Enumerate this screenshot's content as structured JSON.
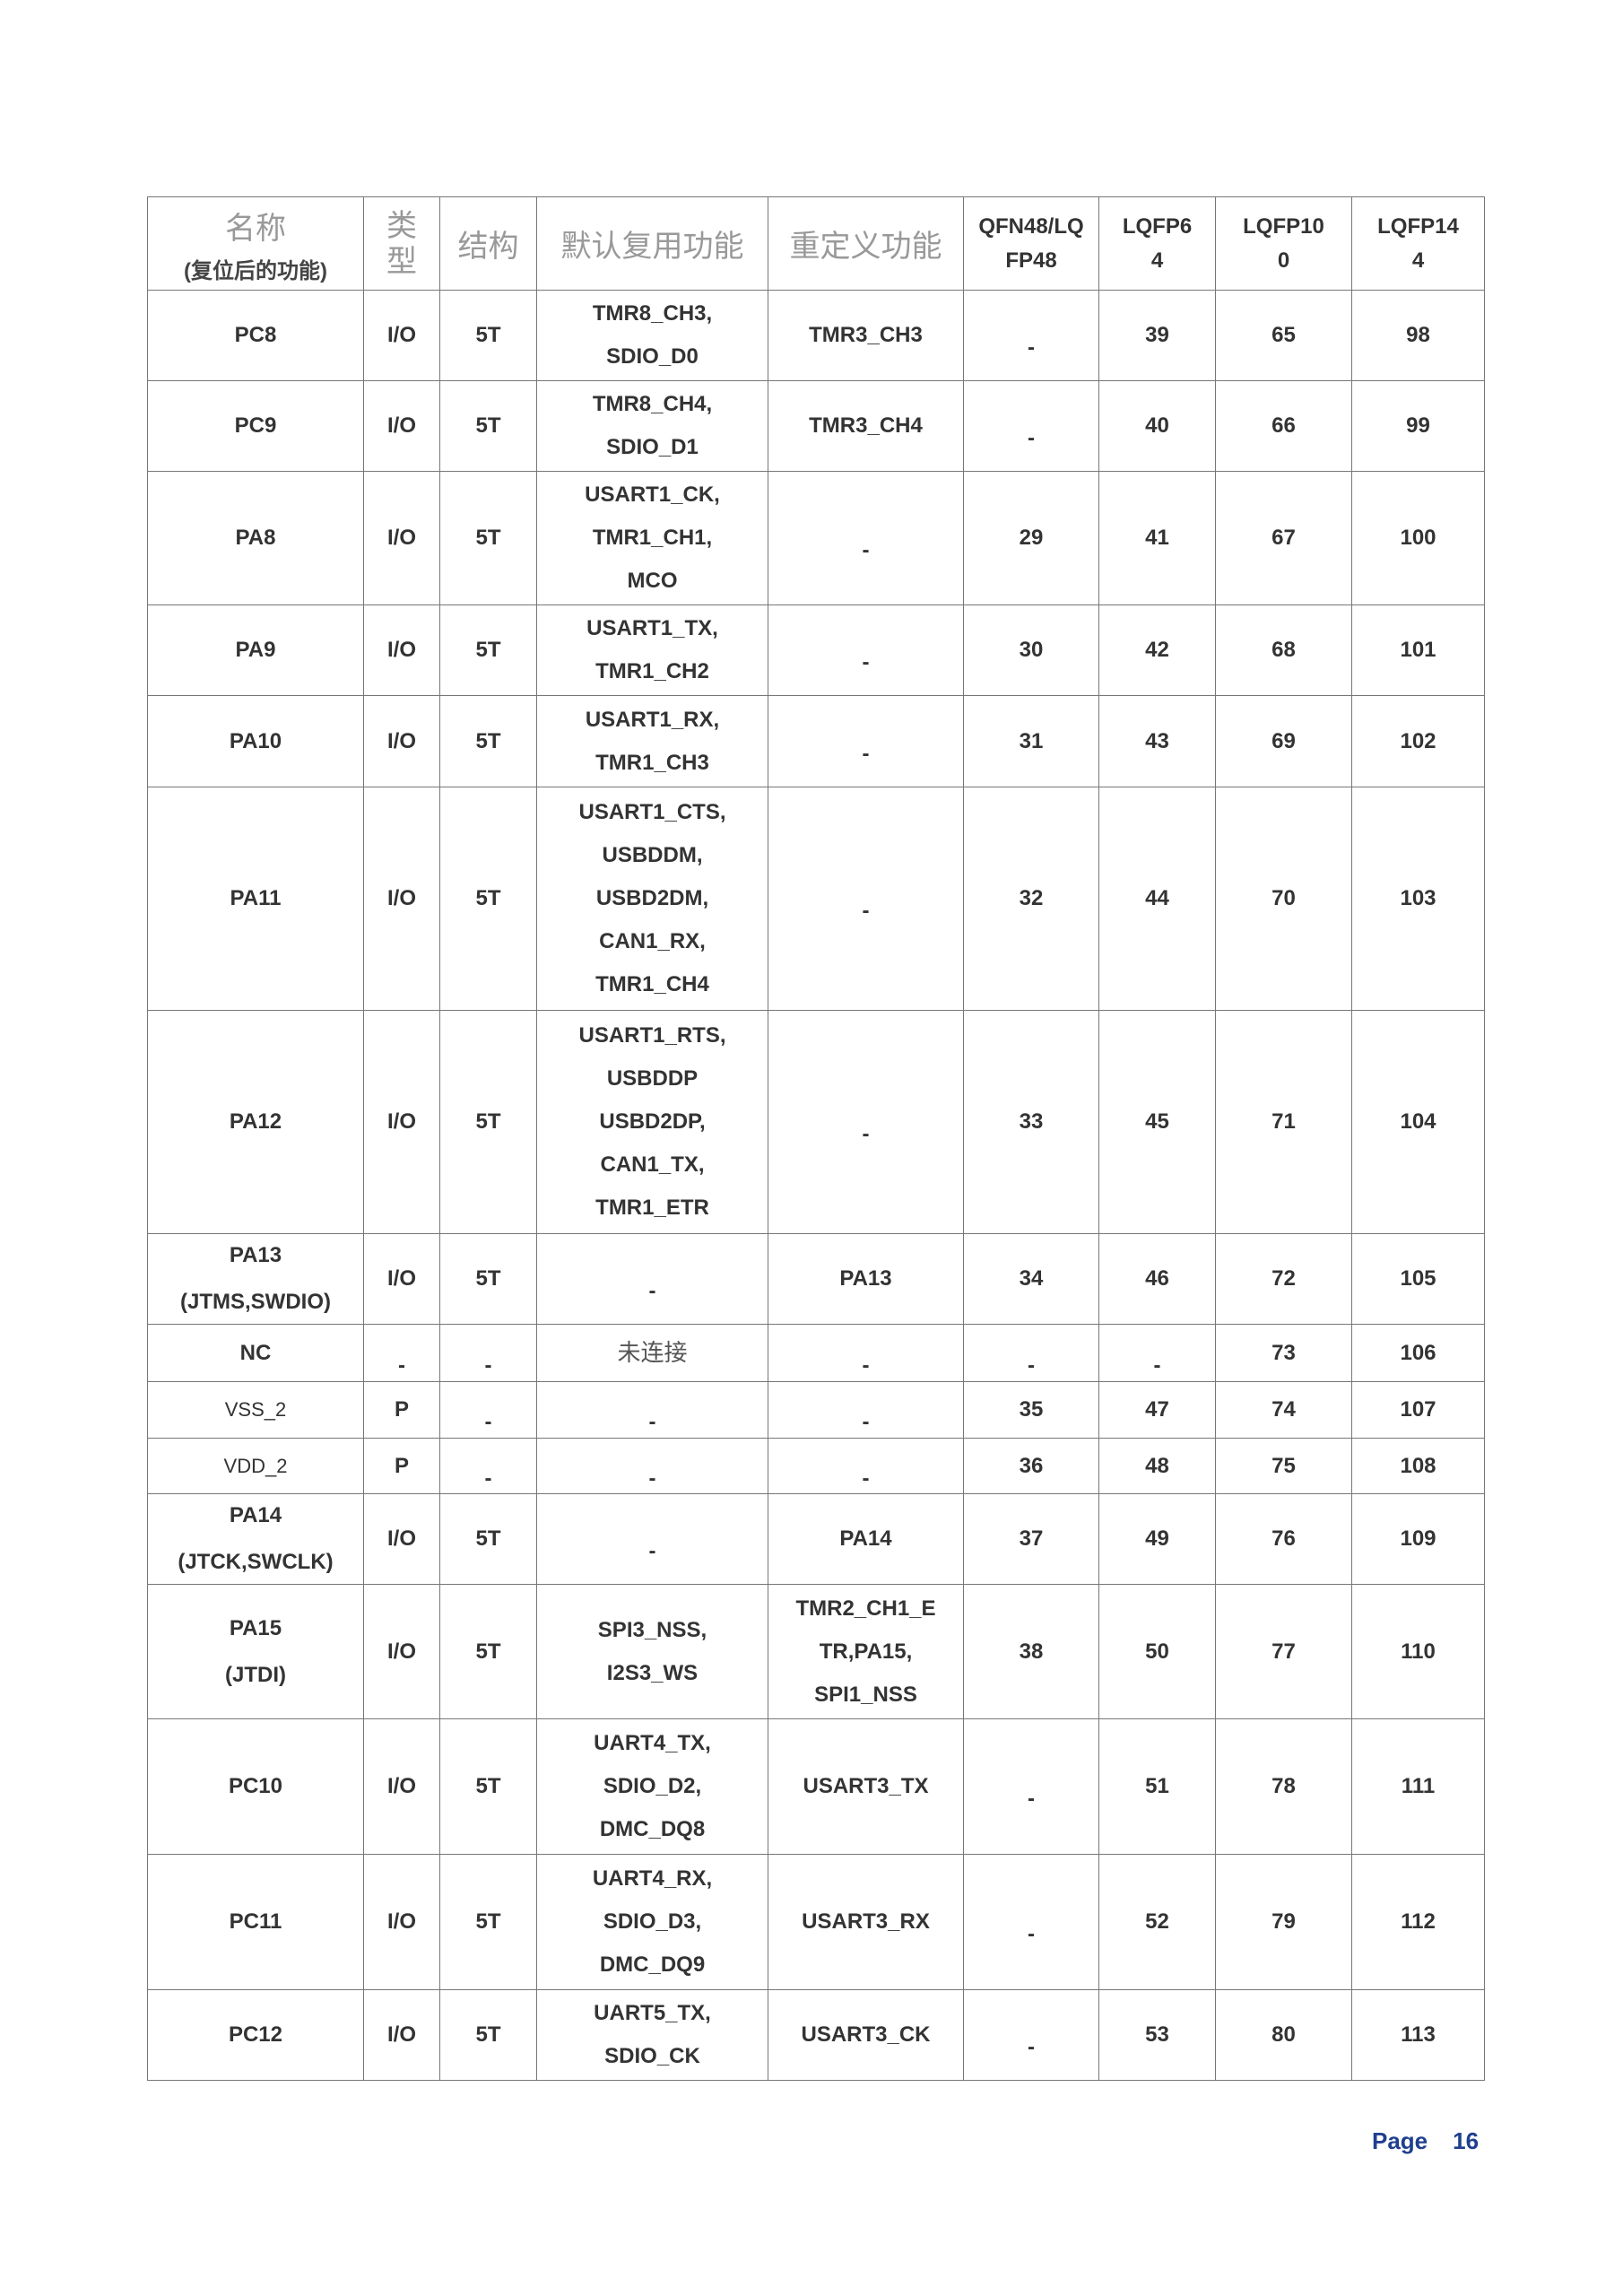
{
  "header": {
    "name": "名称",
    "name_sub": "(复位后的功能)",
    "type": "类型",
    "structure": "结构",
    "default_af": "默认复用功能",
    "remap": "重定义功能",
    "qfn48": "QFN48/LQFP48",
    "lqfp64": "LQFP64",
    "lqfp100": "LQFP100",
    "lqfp144": "LQFP144"
  },
  "rows": [
    {
      "name": "PC8",
      "name_sub": "",
      "type": "I/O",
      "structure": "5T",
      "default_af": [
        "TMR8_CH3,",
        "SDIO_D0"
      ],
      "remap": [
        "TMR3_CH3"
      ],
      "qfn48": "-",
      "lqfp64": "39",
      "lqfp100": "65",
      "lqfp144": "98"
    },
    {
      "name": "PC9",
      "name_sub": "",
      "type": "I/O",
      "structure": "5T",
      "default_af": [
        "TMR8_CH4,",
        "SDIO_D1"
      ],
      "remap": [
        "TMR3_CH4"
      ],
      "qfn48": "-",
      "lqfp64": "40",
      "lqfp100": "66",
      "lqfp144": "99"
    },
    {
      "name": "PA8",
      "name_sub": "",
      "type": "I/O",
      "structure": "5T",
      "default_af": [
        "USART1_CK,",
        "TMR1_CH1,",
        "MCO"
      ],
      "remap": [
        "-"
      ],
      "qfn48": "29",
      "lqfp64": "41",
      "lqfp100": "67",
      "lqfp144": "100"
    },
    {
      "name": "PA9",
      "name_sub": "",
      "type": "I/O",
      "structure": "5T",
      "default_af": [
        "USART1_TX,",
        "TMR1_CH2"
      ],
      "remap": [
        "-"
      ],
      "qfn48": "30",
      "lqfp64": "42",
      "lqfp100": "68",
      "lqfp144": "101"
    },
    {
      "name": "PA10",
      "name_sub": "",
      "type": "I/O",
      "structure": "5T",
      "default_af": [
        "USART1_RX,",
        "TMR1_CH3"
      ],
      "remap": [
        "-"
      ],
      "qfn48": "31",
      "lqfp64": "43",
      "lqfp100": "69",
      "lqfp144": "102"
    },
    {
      "name": "PA11",
      "name_sub": "",
      "type": "I/O",
      "structure": "5T",
      "default_af": [
        "USART1_CTS,",
        "USBDDM,",
        "USBD2DM,",
        "CAN1_RX,",
        "TMR1_CH4"
      ],
      "remap": [
        "-"
      ],
      "qfn48": "32",
      "lqfp64": "44",
      "lqfp100": "70",
      "lqfp144": "103"
    },
    {
      "name": "PA12",
      "name_sub": "",
      "type": "I/O",
      "structure": "5T",
      "default_af": [
        "USART1_RTS,",
        "USBDDP",
        "USBD2DP,",
        "CAN1_TX,",
        "TMR1_ETR"
      ],
      "remap": [
        "-"
      ],
      "qfn48": "33",
      "lqfp64": "45",
      "lqfp100": "71",
      "lqfp144": "104"
    },
    {
      "name": "PA13",
      "name_sub": "(JTMS,SWDIO)",
      "type": "I/O",
      "structure": "5T",
      "default_af": [
        "-"
      ],
      "remap": [
        "PA13"
      ],
      "qfn48": "34",
      "lqfp64": "46",
      "lqfp100": "72",
      "lqfp144": "105"
    },
    {
      "name": "NC",
      "name_sub": "",
      "type": "-",
      "structure": "-",
      "default_af": [
        "未连接"
      ],
      "remap": [
        "-"
      ],
      "qfn48": "-",
      "lqfp64": "-",
      "lqfp100": "73",
      "lqfp144": "106"
    },
    {
      "name": "VSS_2",
      "name_sub": "",
      "type": "P",
      "structure": "-",
      "default_af": [
        "-"
      ],
      "remap": [
        "-"
      ],
      "qfn48": "35",
      "lqfp64": "47",
      "lqfp100": "74",
      "lqfp144": "107"
    },
    {
      "name": "VDD_2",
      "name_sub": "",
      "type": "P",
      "structure": "-",
      "default_af": [
        "-"
      ],
      "remap": [
        "-"
      ],
      "qfn48": "36",
      "lqfp64": "48",
      "lqfp100": "75",
      "lqfp144": "108"
    },
    {
      "name": "PA14",
      "name_sub": "(JTCK,SWCLK)",
      "type": "I/O",
      "structure": "5T",
      "default_af": [
        "-"
      ],
      "remap": [
        "PA14"
      ],
      "qfn48": "37",
      "lqfp64": "49",
      "lqfp100": "76",
      "lqfp144": "109"
    },
    {
      "name": "PA15",
      "name_sub": "(JTDI)",
      "type": "I/O",
      "structure": "5T",
      "default_af": [
        "SPI3_NSS,",
        "I2S3_WS"
      ],
      "remap": [
        "TMR2_CH1_E",
        "TR,PA15,",
        "SPI1_NSS"
      ],
      "qfn48": "38",
      "lqfp64": "50",
      "lqfp100": "77",
      "lqfp144": "110"
    },
    {
      "name": "PC10",
      "name_sub": "",
      "type": "I/O",
      "structure": "5T",
      "default_af": [
        "UART4_TX,",
        "SDIO_D2,",
        "DMC_DQ8"
      ],
      "remap": [
        "USART3_TX"
      ],
      "qfn48": "-",
      "lqfp64": "51",
      "lqfp100": "78",
      "lqfp144": "111"
    },
    {
      "name": "PC11",
      "name_sub": "",
      "type": "I/O",
      "structure": "5T",
      "default_af": [
        "UART4_RX,",
        "SDIO_D3,",
        "DMC_DQ9"
      ],
      "remap": [
        "USART3_RX"
      ],
      "qfn48": "-",
      "lqfp64": "52",
      "lqfp100": "79",
      "lqfp144": "112"
    },
    {
      "name": "PC12",
      "name_sub": "",
      "type": "I/O",
      "structure": "5T",
      "default_af": [
        "UART5_TX,",
        "SDIO_CK"
      ],
      "remap": [
        "USART3_CK"
      ],
      "qfn48": "-",
      "lqfp64": "53",
      "lqfp100": "80",
      "lqfp144": "113"
    }
  ],
  "footer": {
    "page_label": "Page",
    "page_number": "16"
  },
  "colors": {
    "footer": "#1f3f8f",
    "header_cn": "#999999",
    "border": "#777777"
  }
}
